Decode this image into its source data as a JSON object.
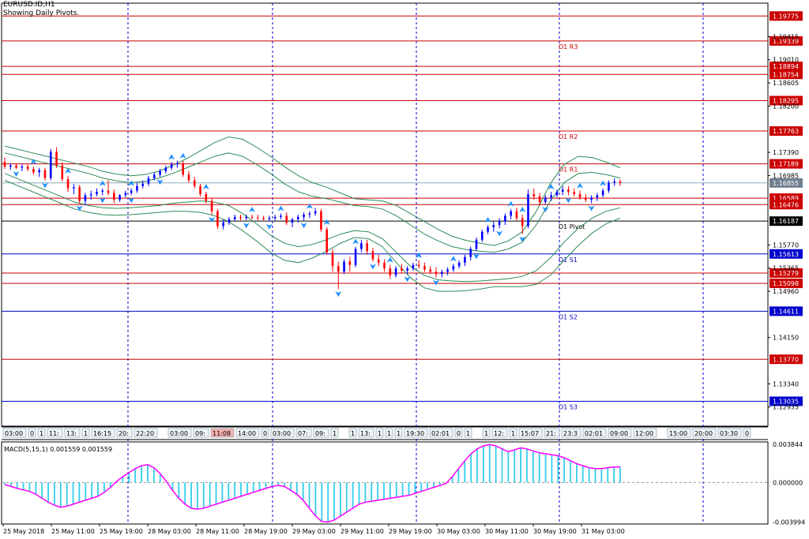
{
  "header": {
    "symbol": "EURUSD.ID,H1",
    "subtitle": "Showing Daily Pivots."
  },
  "colors": {
    "bull": "#0000ff",
    "bear": "#ff0000",
    "resistance": "#cc0000",
    "support": "#0000cc",
    "band": "#2e8b57",
    "arrow": "#1e90ff",
    "macd_bar": "#33ccee",
    "macd_signal": "#ff00ff"
  },
  "chart_data": [
    {
      "type": "candlestick",
      "name": "EURUSD.ID,H1",
      "ylim": [
        1.126,
        1.2
      ],
      "y_ticks": [
        1.19415,
        1.1901,
        1.18605,
        1.182,
        1.1739,
        1.16985,
        1.1577,
        1.15365,
        1.1496,
        1.1415,
        1.1334,
        1.12935
      ],
      "price_labels": [
        {
          "value": "1.19775",
          "text": "",
          "kind": "resistance"
        },
        {
          "value": "1.19339",
          "text": "D1 R3",
          "kind": "resistance"
        },
        {
          "value": "1.18894",
          "text": "",
          "kind": "resistance"
        },
        {
          "value": "1.18754",
          "text": "",
          "kind": "resistance"
        },
        {
          "value": "1.18295",
          "text": "",
          "kind": "resistance"
        },
        {
          "value": "1.17763",
          "text": "D1 R2",
          "kind": "resistance"
        },
        {
          "value": "1.17189",
          "text": "D1 R1",
          "kind": "resistance"
        },
        {
          "value": "1.16855",
          "text": "",
          "kind": "current"
        },
        {
          "value": "1.16589",
          "text": "",
          "kind": "resistance"
        },
        {
          "value": "1.16476",
          "text": "",
          "kind": "resistance"
        },
        {
          "value": "1.16187",
          "text": "D1 Pivot",
          "kind": "pivot"
        },
        {
          "value": "1.15613",
          "text": "D1 S1",
          "kind": "support"
        },
        {
          "value": "1.15279",
          "text": "",
          "kind": "resistance"
        },
        {
          "value": "1.15098",
          "text": "",
          "kind": "resistance"
        },
        {
          "value": "1.14611",
          "text": "D1 S2",
          "kind": "support"
        },
        {
          "value": "1.13770",
          "text": "",
          "kind": "resistance"
        },
        {
          "value": "1.13035",
          "text": "D1 S3",
          "kind": "support"
        }
      ],
      "x_labels": [
        "25 May 2018",
        "25 May 11:00",
        "25 May 19:00",
        "28 May 03:00",
        "28 May 11:00",
        "28 May 19:00",
        "29 May 03:00",
        "29 May 11:00",
        "29 May 19:00",
        "30 May 03:00",
        "30 May 11:00",
        "30 May 19:00",
        "31 May 03:00"
      ],
      "session_labels": [
        "03:00",
        "0",
        "1",
        "11:",
        "13:",
        "1",
        "16:15",
        "20:",
        "22:20",
        "03:00",
        "09:",
        "11:08",
        "14:00",
        "0",
        "03:00",
        "07:",
        "09:",
        "1",
        "1",
        "13:",
        "1",
        "1",
        "1",
        "19:30",
        "02:01",
        "0",
        "1",
        "1",
        "12:",
        "1",
        "15:07",
        "21:",
        "23:3",
        "02:01",
        "09:00",
        "12:00",
        "15:00",
        "20:00",
        "03:30",
        "0"
      ],
      "candles": [
        [
          1.1722,
          1.173,
          1.171,
          1.1714
        ],
        [
          1.1714,
          1.172,
          1.1708,
          1.1716
        ],
        [
          1.1716,
          1.172,
          1.171,
          1.1712
        ],
        [
          1.1712,
          1.1718,
          1.1706,
          1.1714
        ],
        [
          1.1714,
          1.1718,
          1.1706,
          1.171
        ],
        [
          1.171,
          1.1714,
          1.17,
          1.1704
        ],
        [
          1.1704,
          1.1712,
          1.1696,
          1.1708
        ],
        [
          1.1708,
          1.1712,
          1.169,
          1.1694
        ],
        [
          1.1694,
          1.1745,
          1.169,
          1.174
        ],
        [
          1.174,
          1.1748,
          1.1712,
          1.1716
        ],
        [
          1.1716,
          1.1722,
          1.1688,
          1.1692
        ],
        [
          1.1692,
          1.1698,
          1.167,
          1.1676
        ],
        [
          1.1676,
          1.1684,
          1.1666,
          1.1678
        ],
        [
          1.1678,
          1.1682,
          1.165,
          1.1654
        ],
        [
          1.1654,
          1.1668,
          1.1646,
          1.1664
        ],
        [
          1.1664,
          1.1672,
          1.1656,
          1.1666
        ],
        [
          1.1666,
          1.1676,
          1.1662,
          1.167
        ],
        [
          1.167,
          1.1676,
          1.1664,
          1.1672
        ],
        [
          1.1672,
          1.169,
          1.1664,
          1.1668
        ],
        [
          1.1668,
          1.1674,
          1.165,
          1.1656
        ],
        [
          1.1656,
          1.1666,
          1.1652,
          1.1664
        ],
        [
          1.1664,
          1.1672,
          1.166,
          1.1668
        ],
        [
          1.1668,
          1.1676,
          1.1664,
          1.1672
        ],
        [
          1.1672,
          1.1686,
          1.1668,
          1.168
        ],
        [
          1.168,
          1.169,
          1.1676,
          1.1684
        ],
        [
          1.1684,
          1.1698,
          1.168,
          1.1694
        ],
        [
          1.1694,
          1.1704,
          1.169,
          1.17
        ],
        [
          1.17,
          1.171,
          1.1696,
          1.1706
        ],
        [
          1.1706,
          1.1716,
          1.1702,
          1.1712
        ],
        [
          1.1712,
          1.1722,
          1.1708,
          1.1718
        ],
        [
          1.1718,
          1.1724,
          1.1712,
          1.172
        ],
        [
          1.172,
          1.1724,
          1.1696,
          1.17
        ],
        [
          1.17,
          1.1706,
          1.1686,
          1.169
        ],
        [
          1.169,
          1.1696,
          1.1676,
          1.168
        ],
        [
          1.168,
          1.1684,
          1.1662,
          1.1666
        ],
        [
          1.1666,
          1.167,
          1.165,
          1.1654
        ],
        [
          1.1654,
          1.166,
          1.163,
          1.1636
        ],
        [
          1.1636,
          1.164,
          1.1605,
          1.161
        ],
        [
          1.161,
          1.1622,
          1.1604,
          1.1616
        ],
        [
          1.1616,
          1.1626,
          1.1612,
          1.1622
        ],
        [
          1.1622,
          1.163,
          1.1618,
          1.1626
        ],
        [
          1.1626,
          1.163,
          1.162,
          1.1624
        ],
        [
          1.1624,
          1.163,
          1.162,
          1.1626
        ],
        [
          1.1626,
          1.163,
          1.1622,
          1.1625
        ],
        [
          1.1625,
          1.163,
          1.162,
          1.1624
        ],
        [
          1.1624,
          1.1628,
          1.162,
          1.1622
        ],
        [
          1.1622,
          1.1628,
          1.1618,
          1.1624
        ],
        [
          1.1624,
          1.163,
          1.162,
          1.1626
        ],
        [
          1.1626,
          1.1632,
          1.1622,
          1.1628
        ],
        [
          1.1628,
          1.1634,
          1.1612,
          1.1616
        ],
        [
          1.1616,
          1.1624,
          1.1608,
          1.1622
        ],
        [
          1.1622,
          1.163,
          1.1616,
          1.1626
        ],
        [
          1.1626,
          1.1634,
          1.162,
          1.163
        ],
        [
          1.163,
          1.1636,
          1.1624,
          1.1632
        ],
        [
          1.1632,
          1.1642,
          1.1628,
          1.1636
        ],
        [
          1.1636,
          1.164,
          1.16,
          1.1604
        ],
        [
          1.1604,
          1.1608,
          1.156,
          1.1564
        ],
        [
          1.1564,
          1.157,
          1.153,
          1.154
        ],
        [
          1.154,
          1.1548,
          1.15,
          1.153
        ],
        [
          1.153,
          1.1552,
          1.1526,
          1.1548
        ],
        [
          1.1548,
          1.1556,
          1.153,
          1.1542
        ],
        [
          1.1542,
          1.1574,
          1.1538,
          1.157
        ],
        [
          1.157,
          1.1586,
          1.1564,
          1.158
        ],
        [
          1.158,
          1.1586,
          1.156,
          1.1566
        ],
        [
          1.1566,
          1.1572,
          1.1548,
          1.1552
        ],
        [
          1.1552,
          1.156,
          1.154,
          1.1546
        ],
        [
          1.1546,
          1.1552,
          1.153,
          1.1536
        ],
        [
          1.1536,
          1.1542,
          1.1518,
          1.1524
        ],
        [
          1.1524,
          1.154,
          1.152,
          1.1536
        ],
        [
          1.1536,
          1.1544,
          1.1528,
          1.1532
        ],
        [
          1.1532,
          1.154,
          1.1526,
          1.1536
        ],
        [
          1.1536,
          1.1546,
          1.1532,
          1.1542
        ],
        [
          1.1542,
          1.155,
          1.1536,
          1.154
        ],
        [
          1.154,
          1.1546,
          1.153,
          1.1534
        ],
        [
          1.1534,
          1.154,
          1.1526,
          1.153
        ],
        [
          1.153,
          1.1538,
          1.152,
          1.1526
        ],
        [
          1.1526,
          1.1534,
          1.152,
          1.153
        ],
        [
          1.153,
          1.1538,
          1.1524,
          1.1534
        ],
        [
          1.1534,
          1.1544,
          1.153,
          1.154
        ],
        [
          1.154,
          1.155,
          1.1536,
          1.1546
        ],
        [
          1.1546,
          1.156,
          1.154,
          1.1556
        ],
        [
          1.1556,
          1.1574,
          1.155,
          1.157
        ],
        [
          1.157,
          1.159,
          1.1566,
          1.1586
        ],
        [
          1.1586,
          1.1604,
          1.1582,
          1.16
        ],
        [
          1.16,
          1.1612,
          1.1596,
          1.1608
        ],
        [
          1.1608,
          1.1618,
          1.16,
          1.1612
        ],
        [
          1.1612,
          1.1624,
          1.1606,
          1.1618
        ],
        [
          1.1618,
          1.1632,
          1.1612,
          1.1628
        ],
        [
          1.1628,
          1.164,
          1.1622,
          1.1636
        ],
        [
          1.1636,
          1.1642,
          1.162,
          1.1624
        ],
        [
          1.1624,
          1.163,
          1.1596,
          1.161
        ],
        [
          1.161,
          1.1674,
          1.1606,
          1.1666
        ],
        [
          1.1666,
          1.1676,
          1.1656,
          1.1662
        ],
        [
          1.1662,
          1.1668,
          1.1646,
          1.1652
        ],
        [
          1.1652,
          1.1664,
          1.1648,
          1.166
        ],
        [
          1.166,
          1.167,
          1.1654,
          1.1664
        ],
        [
          1.1664,
          1.1674,
          1.166,
          1.167
        ],
        [
          1.167,
          1.168,
          1.1664,
          1.1674
        ],
        [
          1.1674,
          1.168,
          1.1664,
          1.167
        ],
        [
          1.167,
          1.1676,
          1.1662,
          1.1666
        ],
        [
          1.1666,
          1.1672,
          1.1656,
          1.166
        ],
        [
          1.166,
          1.1666,
          1.1652,
          1.1656
        ],
        [
          1.1656,
          1.1664,
          1.165,
          1.166
        ],
        [
          1.166,
          1.1668,
          1.1654,
          1.1664
        ],
        [
          1.1664,
          1.1676,
          1.166,
          1.1672
        ],
        [
          1.1672,
          1.169,
          1.1668,
          1.1686
        ],
        [
          1.1686,
          1.1694,
          1.168,
          1.1688
        ],
        [
          1.1688,
          1.1692,
          1.168,
          1.1686
        ]
      ],
      "bands": {
        "center": [
          1.172,
          1.1712,
          1.1704,
          1.1696,
          1.1688,
          1.168,
          1.1674,
          1.1668,
          1.1665,
          1.1664,
          1.1666,
          1.167,
          1.1676,
          1.1682,
          1.1688,
          1.1692,
          1.1692,
          1.1682,
          1.1666,
          1.1648,
          1.1632,
          1.1622,
          1.162,
          1.1622,
          1.1624,
          1.1624,
          1.1622,
          1.1614,
          1.1596,
          1.1576,
          1.156,
          1.155,
          1.1544,
          1.1541,
          1.154,
          1.154,
          1.1544,
          1.1552,
          1.1572,
          1.1604,
          1.1634,
          1.1654,
          1.1664,
          1.1668,
          1.1668
        ],
        "width1": [
          0.0018,
          0.002,
          0.0022,
          0.0024,
          0.0026,
          0.0028,
          0.0028,
          0.0026,
          0.0024,
          0.0022,
          0.0022,
          0.0024,
          0.0026,
          0.003,
          0.0034,
          0.004,
          0.0046,
          0.005,
          0.0052,
          0.0054,
          0.0052,
          0.0048,
          0.0042,
          0.0036,
          0.0028,
          0.0022,
          0.0022,
          0.0026,
          0.0032,
          0.0036,
          0.0036,
          0.0034,
          0.003,
          0.0028,
          0.0026,
          0.0024,
          0.0026,
          0.003,
          0.004,
          0.005,
          0.0052,
          0.0048,
          0.004,
          0.0032,
          0.0026
        ],
        "width2": [
          0.003,
          0.0032,
          0.0034,
          0.0036,
          0.0038,
          0.004,
          0.004,
          0.0038,
          0.0036,
          0.0034,
          0.0034,
          0.0036,
          0.004,
          0.0046,
          0.0054,
          0.0064,
          0.0074,
          0.008,
          0.0082,
          0.0084,
          0.0082,
          0.0076,
          0.0066,
          0.0056,
          0.0044,
          0.0034,
          0.0034,
          0.004,
          0.005,
          0.0056,
          0.0058,
          0.0054,
          0.0048,
          0.0044,
          0.004,
          0.0036,
          0.004,
          0.0048,
          0.0064,
          0.008,
          0.0084,
          0.0078,
          0.0066,
          0.0054,
          0.0044
        ]
      },
      "fractals_up": [
        5,
        11,
        17,
        22,
        29,
        31,
        35,
        43,
        48,
        53,
        56,
        61,
        67,
        72,
        78,
        84,
        88,
        90,
        95,
        100,
        104
      ],
      "fractals_down": [
        2,
        7,
        13,
        17,
        22,
        27,
        36,
        42,
        46,
        52,
        58,
        64,
        70,
        75,
        82,
        86,
        90,
        94,
        98,
        102
      ]
    },
    {
      "type": "histogram",
      "name": "MACD(5,15,1) 0.001559 0.001559",
      "ylim": [
        -0.0042,
        0.0041
      ],
      "y_ticks": [
        "0.003844",
        "0.000000",
        "-0.003994"
      ],
      "values": [
        -0.0002,
        -0.0004,
        -0.0006,
        -0.00075,
        -0.0009,
        -0.0012,
        -0.0016,
        -0.002,
        -0.0023,
        -0.0025,
        -0.0024,
        -0.0022,
        -0.002,
        -0.0018,
        -0.0016,
        -0.0014,
        -0.001,
        -0.0005,
        0.0001,
        0.0006,
        0.001,
        0.0014,
        0.0017,
        0.0018,
        0.0015,
        0.0009,
        0.0001,
        -0.0008,
        -0.0016,
        -0.0022,
        -0.0026,
        -0.0027,
        -0.0026,
        -0.0024,
        -0.0022,
        -0.002,
        -0.0018,
        -0.0016,
        -0.0014,
        -0.0012,
        -0.001,
        -0.0008,
        -0.0006,
        -0.0004,
        -0.0003,
        -0.0004,
        -0.0008,
        -0.0012,
        -0.0018,
        -0.0026,
        -0.0034,
        -0.00395,
        -0.004,
        -0.0038,
        -0.0034,
        -0.003,
        -0.0026,
        -0.0022,
        -0.002,
        -0.0019,
        -0.0018,
        -0.0017,
        -0.0016,
        -0.0015,
        -0.0014,
        -0.0013,
        -0.0011,
        -0.0009,
        -0.0007,
        -0.0005,
        -0.0003,
        -0.0001,
        0.0006,
        0.0014,
        0.0022,
        0.0029,
        0.0034,
        0.0037,
        0.00384,
        0.0037,
        0.0034,
        0.0031,
        0.0033,
        0.0035,
        0.0034,
        0.0032,
        0.003,
        0.0029,
        0.0028,
        0.0027,
        0.0025,
        0.0022,
        0.0019,
        0.0017,
        0.0015,
        0.0014,
        0.0014,
        0.0015,
        0.00156,
        0.00156
      ]
    }
  ]
}
